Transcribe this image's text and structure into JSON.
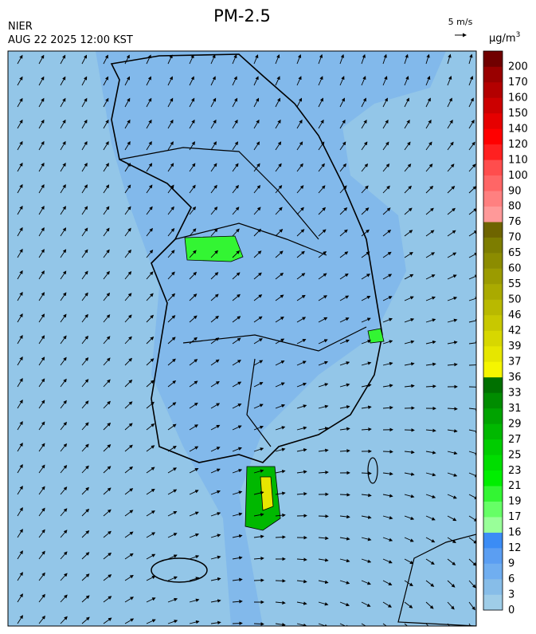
{
  "header": {
    "title": "PM-2.5",
    "agency": "NIER",
    "timestamp": "AUG 22 2025 12:00 KST"
  },
  "wind_scale": {
    "label": "5 m/s"
  },
  "colorbar": {
    "unit": "µg/m",
    "unit_sup": "3",
    "levels": [
      0,
      3,
      6,
      9,
      12,
      16,
      17,
      19,
      21,
      23,
      25,
      27,
      29,
      31,
      33,
      36,
      37,
      39,
      42,
      46,
      50,
      55,
      60,
      65,
      70,
      76,
      80,
      90,
      100,
      110,
      120,
      140,
      150,
      160,
      170,
      200
    ],
    "colors": [
      "#9fcde8",
      "#87bde8",
      "#70aef0",
      "#5b9ef2",
      "#3b8cf5",
      "#99ff99",
      "#66ff66",
      "#33f533",
      "#00ee00",
      "#00dd00",
      "#00cc00",
      "#00b800",
      "#00a300",
      "#008c00",
      "#007000",
      "#f5f500",
      "#e6e600",
      "#d7d700",
      "#c8c800",
      "#b9b900",
      "#aaaa00",
      "#9b9b00",
      "#8c8c00",
      "#7d7d00",
      "#6e6400",
      "#ff9999",
      "#ff8080",
      "#ff6666",
      "#ff4d4d",
      "#ff2020",
      "#ff0000",
      "#e60000",
      "#cc0000",
      "#b30000",
      "#990000",
      "#700000"
    ]
  }
}
